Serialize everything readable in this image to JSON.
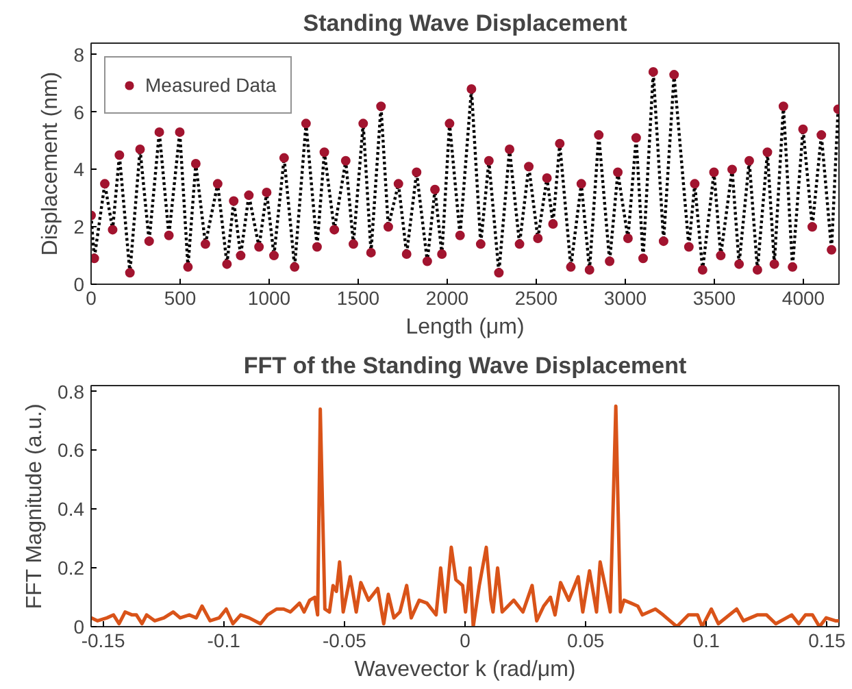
{
  "chart_data": [
    {
      "type": "line",
      "title": "Standing Wave Displacement",
      "xlabel": "Length (μm)",
      "ylabel": "Displacement (nm)",
      "x": [
        0,
        18,
        77,
        121,
        159,
        218,
        275,
        326,
        383,
        437,
        498,
        544,
        588,
        642,
        711,
        763,
        801,
        840,
        886,
        943,
        986,
        1027,
        1084,
        1143,
        1207,
        1269,
        1310,
        1366,
        1430,
        1473,
        1528,
        1572,
        1628,
        1669,
        1726,
        1772,
        1828,
        1888,
        1931,
        1970,
        2013,
        2072,
        2136,
        2188,
        2234,
        2290,
        2350,
        2406,
        2458,
        2509,
        2560,
        2594,
        2632,
        2694,
        2753,
        2799,
        2851,
        2912,
        2958,
        3015,
        3061,
        3100,
        3157,
        3215,
        3274,
        3357,
        3390,
        3434,
        3498,
        3536,
        3600,
        3639,
        3696,
        3742,
        3798,
        3837,
        3888,
        3939,
        3998,
        4050,
        4101,
        4158,
        4195
      ],
      "series": [
        {
          "type": "line",
          "color": "#000000",
          "line_style": "dotted",
          "values": [
            2.4,
            0.9,
            3.5,
            1.9,
            4.5,
            0.4,
            4.7,
            1.5,
            5.3,
            1.7,
            5.3,
            0.6,
            4.2,
            1.4,
            3.5,
            0.7,
            2.9,
            1.0,
            3.1,
            1.3,
            3.2,
            1.0,
            4.4,
            0.6,
            5.6,
            1.3,
            4.6,
            1.9,
            4.3,
            1.4,
            5.6,
            1.1,
            6.2,
            2.0,
            3.5,
            1.05,
            3.9,
            0.8,
            3.3,
            1.05,
            5.6,
            1.7,
            6.8,
            1.4,
            4.3,
            0.4,
            4.7,
            1.4,
            4.1,
            1.6,
            3.7,
            2.1,
            4.9,
            0.6,
            3.5,
            0.5,
            5.2,
            0.8,
            3.9,
            1.6,
            5.1,
            0.9,
            7.4,
            1.5,
            7.3,
            1.3,
            3.5,
            0.5,
            3.9,
            1.0,
            4.0,
            0.7,
            4.3,
            0.5,
            4.6,
            0.7,
            6.2,
            0.6,
            5.4,
            2.0,
            5.2,
            1.2,
            6.1
          ]
        },
        {
          "type": "scatter",
          "name": "Measured Data",
          "color": "#a2142f",
          "marker": "circle",
          "values": [
            2.4,
            0.9,
            3.5,
            1.9,
            4.5,
            0.4,
            4.7,
            1.5,
            5.3,
            1.7,
            5.3,
            0.6,
            4.2,
            1.4,
            3.5,
            0.7,
            2.9,
            1.0,
            3.1,
            1.3,
            3.2,
            1.0,
            4.4,
            0.6,
            5.6,
            1.3,
            4.6,
            1.9,
            4.3,
            1.4,
            5.6,
            1.1,
            6.2,
            2.0,
            3.5,
            1.05,
            3.9,
            0.8,
            3.3,
            1.05,
            5.6,
            1.7,
            6.8,
            1.4,
            4.3,
            0.4,
            4.7,
            1.4,
            4.1,
            1.6,
            3.7,
            2.1,
            4.9,
            0.6,
            3.5,
            0.5,
            5.2,
            0.8,
            3.9,
            1.6,
            5.1,
            0.9,
            7.4,
            1.5,
            7.3,
            1.3,
            3.5,
            0.5,
            3.9,
            1.0,
            4.0,
            0.7,
            4.3,
            0.5,
            4.6,
            0.7,
            6.2,
            0.6,
            5.4,
            2.0,
            5.2,
            1.2,
            6.1
          ]
        }
      ],
      "xlim": [
        0,
        4200
      ],
      "ylim": [
        0,
        8.4
      ],
      "xticks": [
        0,
        500,
        1000,
        1500,
        2000,
        2500,
        3000,
        3500,
        4000
      ],
      "yticks": [
        0,
        2,
        4,
        6,
        8
      ],
      "grid": false,
      "legend": "top left"
    },
    {
      "type": "line",
      "title": "FFT of the Standing Wave Displacement",
      "xlabel": "Wavevector k (rad/μm)",
      "ylabel": "FFT Magnitude (a.u.)",
      "x": [
        -0.155,
        -0.1523,
        -0.1484,
        -0.1457,
        -0.1434,
        -0.1409,
        -0.138,
        -0.1362,
        -0.1339,
        -0.132,
        -0.1286,
        -0.1248,
        -0.121,
        -0.1181,
        -0.1143,
        -0.1114,
        -0.109,
        -0.1057,
        -0.1019,
        -0.099,
        -0.0962,
        -0.093,
        -0.0895,
        -0.0848,
        -0.0819,
        -0.0781,
        -0.0752,
        -0.0724,
        -0.0686,
        -0.0667,
        -0.0644,
        -0.0623,
        -0.0611,
        -0.06,
        -0.0581,
        -0.0562,
        -0.0547,
        -0.0533,
        -0.052,
        -0.0505,
        -0.0476,
        -0.0451,
        -0.0432,
        -0.04,
        -0.0362,
        -0.0337,
        -0.0318,
        -0.0295,
        -0.027,
        -0.0242,
        -0.0223,
        -0.019,
        -0.0158,
        -0.012,
        -0.0101,
        -0.0082,
        -0.0057,
        -0.0038,
        -0.001,
        0.0002,
        0.0021,
        0.0034,
        0.0059,
        0.0088,
        0.0107,
        0.0116,
        0.0135,
        0.0154,
        0.0202,
        0.024,
        0.0278,
        0.0297,
        0.0326,
        0.0354,
        0.0373,
        0.0396,
        0.043,
        0.0469,
        0.0488,
        0.0516,
        0.0545,
        0.056,
        0.0583,
        0.0602,
        0.0625,
        0.0644,
        0.0659,
        0.0688,
        0.0716,
        0.0735,
        0.0789,
        0.0821,
        0.0878,
        0.0926,
        0.0964,
        0.0983,
        0.1021,
        0.105,
        0.1126,
        0.1154,
        0.1211,
        0.125,
        0.1288,
        0.1354,
        0.1383,
        0.1411,
        0.144,
        0.1469,
        0.1497,
        0.1535,
        0.155
      ],
      "series": [
        {
          "type": "line",
          "color": "#d95319",
          "values": [
            0.03,
            0.02,
            0.03,
            0.04,
            0.01,
            0.05,
            0.04,
            0.04,
            0.01,
            0.04,
            0.02,
            0.03,
            0.05,
            0.03,
            0.04,
            0.03,
            0.07,
            0.02,
            0.03,
            0.06,
            0.01,
            0.04,
            0.03,
            0.01,
            0.04,
            0.06,
            0.06,
            0.05,
            0.08,
            0.05,
            0.09,
            0.1,
            0.04,
            0.74,
            0.06,
            0.05,
            0.14,
            0.12,
            0.22,
            0.05,
            0.17,
            0.05,
            0.15,
            0.09,
            0.13,
            0.01,
            0.11,
            0.03,
            0.05,
            0.14,
            0.03,
            0.09,
            0.08,
            0.04,
            0.2,
            0.05,
            0.27,
            0.16,
            0.14,
            0.05,
            0.2,
            0.0,
            0.14,
            0.27,
            0.09,
            0.05,
            0.2,
            0.05,
            0.09,
            0.05,
            0.14,
            0.02,
            0.07,
            0.1,
            0.04,
            0.15,
            0.09,
            0.17,
            0.05,
            0.19,
            0.05,
            0.22,
            0.13,
            0.05,
            0.75,
            0.05,
            0.09,
            0.08,
            0.07,
            0.04,
            0.06,
            0.04,
            0.0,
            0.04,
            0.04,
            0.0,
            0.06,
            0.01,
            0.06,
            0.02,
            0.04,
            0.04,
            0.01,
            0.04,
            0.01,
            0.04,
            0.04,
            0.0,
            0.03,
            0.02,
            0.02
          ]
        }
      ],
      "xlim": [
        -0.155,
        0.155
      ],
      "ylim": [
        0,
        0.82
      ],
      "xticks": [
        -0.15,
        -0.1,
        -0.05,
        0,
        0.05,
        0.1,
        0.15
      ],
      "yticks": [
        0,
        0.2,
        0.4,
        0.6,
        0.8
      ],
      "grid": false,
      "legend": false
    }
  ]
}
